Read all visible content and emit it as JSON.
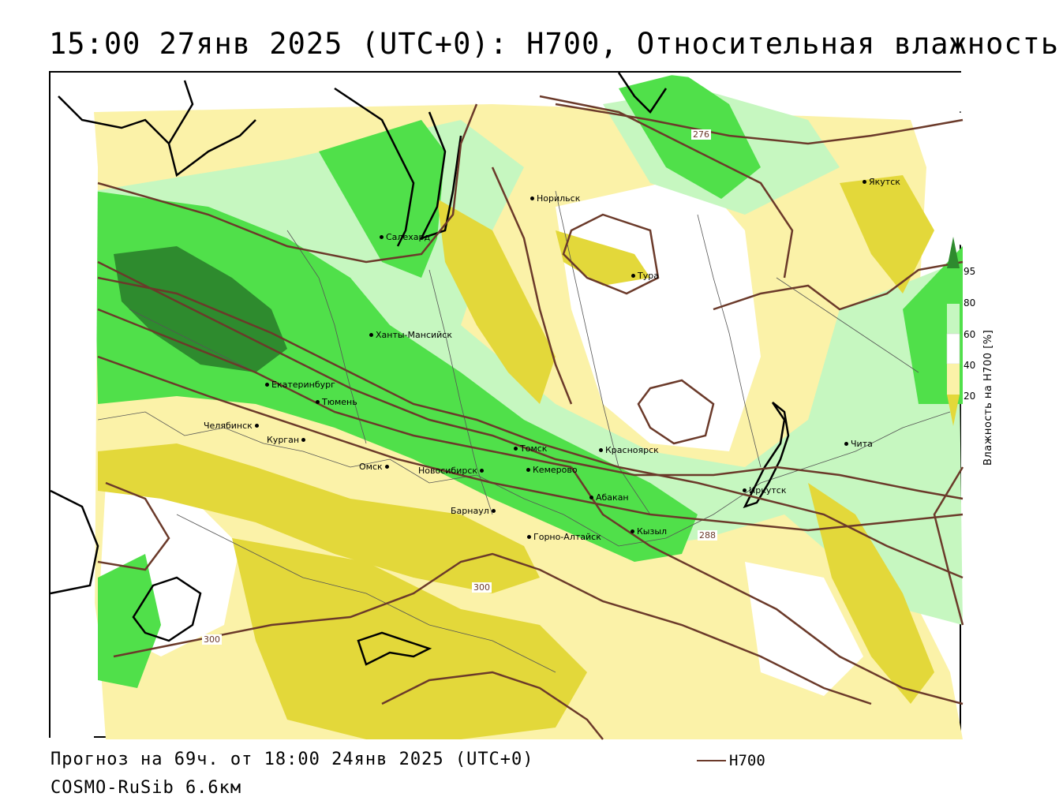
{
  "title": "15:00 27янв 2025 (UTC+0): H700, Относительная влажность",
  "footer": {
    "forecast": "Прогноз на 69ч. от 18:00 24янв 2025 (UTC+0)",
    "model": "COSMO-RuSib 6.6км",
    "legend_label": "H700"
  },
  "colorbar": {
    "title": "Влажность на H700 [%]",
    "ticks": [
      "95",
      "80",
      "60",
      "40",
      "20"
    ],
    "colors": {
      "c95": "#2e8b2e",
      "c80": "#50e04a",
      "c60": "#c6f7c0",
      "c40": "#ffffff",
      "c20": "#fbf2a8",
      "c0": "#e3d83a"
    }
  },
  "contour_color": "#6b3a2a",
  "contour_labels": [
    "276",
    "288",
    "300",
    "300"
  ],
  "cities": [
    {
      "name": "Норильск"
    },
    {
      "name": "Якутск"
    },
    {
      "name": "Салехард"
    },
    {
      "name": "Тура"
    },
    {
      "name": "Ханты-Мансийск"
    },
    {
      "name": "Екатеринбург"
    },
    {
      "name": "Тюмень"
    },
    {
      "name": "Челябинск"
    },
    {
      "name": "Курган"
    },
    {
      "name": "Омск"
    },
    {
      "name": "Новосибирск"
    },
    {
      "name": "Томск"
    },
    {
      "name": "Красноярск"
    },
    {
      "name": "Кемерово"
    },
    {
      "name": "Абакан"
    },
    {
      "name": "Барнаул"
    },
    {
      "name": "Горно-Алтайск"
    },
    {
      "name": "Кызыл"
    },
    {
      "name": "Иркутск"
    },
    {
      "name": "Чита"
    }
  ]
}
